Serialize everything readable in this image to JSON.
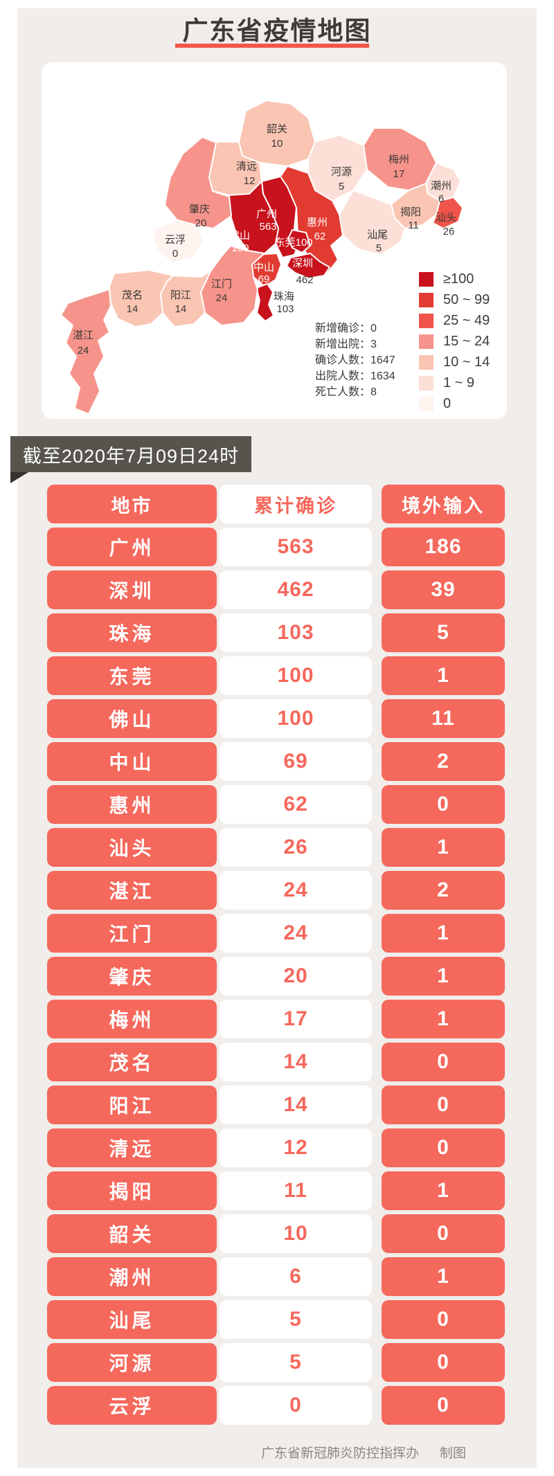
{
  "title": {
    "text": "广东省疫情地图"
  },
  "map_card": {
    "legend": [
      {
        "label": "≥100",
        "color": "#c8121c"
      },
      {
        "label": "50 ~ 99",
        "color": "#e23b31"
      },
      {
        "label": "25 ~ 49",
        "color": "#f0544a"
      },
      {
        "label": "15 ~ 24",
        "color": "#f6948b"
      },
      {
        "label": "10 ~ 14",
        "color": "#fac5b3"
      },
      {
        "label": "1 ~ 9",
        "color": "#fcdfd7"
      },
      {
        "label": "0",
        "color": "#fdf3ef"
      }
    ],
    "stats": [
      {
        "label": "新增确诊：",
        "value": "0"
      },
      {
        "label": "新增出院：",
        "value": "3"
      },
      {
        "label": "确诊人数：",
        "value": "1647"
      },
      {
        "label": "出院人数：",
        "value": "1634"
      },
      {
        "label": "死亡人数：",
        "value": "8"
      }
    ],
    "regions": [
      {
        "id": "shaoguan",
        "name": "韶关",
        "value": "10",
        "tier": 4
      },
      {
        "id": "qingyuan",
        "name": "清远",
        "value": "12",
        "tier": 4
      },
      {
        "id": "heyuan",
        "name": "河源",
        "value": "5",
        "tier": 5
      },
      {
        "id": "meizhou",
        "name": "梅州",
        "value": "17",
        "tier": 3
      },
      {
        "id": "chaozhou",
        "name": "潮州",
        "value": "6",
        "tier": 5
      },
      {
        "id": "jieyang",
        "name": "揭阳",
        "value": "11",
        "tier": 4
      },
      {
        "id": "shantou",
        "name": "汕头",
        "value": "26",
        "tier": 2
      },
      {
        "id": "shanwei",
        "name": "汕尾",
        "value": "5",
        "tier": 5
      },
      {
        "id": "huizhou",
        "name": "惠州",
        "value": "62",
        "tier": 1
      },
      {
        "id": "guangzhou",
        "name": "广州",
        "value": "563",
        "tier": 0
      },
      {
        "id": "foshan",
        "name": "佛山",
        "value": "100",
        "tier": 0
      },
      {
        "id": "dongguan",
        "name": "东莞",
        "value": "100",
        "tier": 0
      },
      {
        "id": "shenzhen",
        "name": "深圳",
        "value": "462",
        "tier": 0
      },
      {
        "id": "zhongshan",
        "name": "中山",
        "value": "69",
        "tier": 1
      },
      {
        "id": "zhuhai",
        "name": "珠海",
        "value": "103",
        "tier": 0
      },
      {
        "id": "jiangmen",
        "name": "江门",
        "value": "24",
        "tier": 3
      },
      {
        "id": "zhaoqing",
        "name": "肇庆",
        "value": "20",
        "tier": 3
      },
      {
        "id": "yunfu",
        "name": "云浮",
        "value": "0",
        "tier": 6
      },
      {
        "id": "maoming",
        "name": "茂名",
        "value": "14",
        "tier": 4
      },
      {
        "id": "yangjiang",
        "name": "阳江",
        "value": "14",
        "tier": 4
      },
      {
        "id": "zhanjiang",
        "name": "湛江",
        "value": "24",
        "tier": 3
      }
    ]
  },
  "date_banner": {
    "text": "截至2020年7月09日24时"
  },
  "table": {
    "headers": [
      "地市",
      "累计确诊",
      "境外输入"
    ],
    "rows": [
      [
        "广州",
        "563",
        "186"
      ],
      [
        "深圳",
        "462",
        "39"
      ],
      [
        "珠海",
        "103",
        "5"
      ],
      [
        "东莞",
        "100",
        "1"
      ],
      [
        "佛山",
        "100",
        "11"
      ],
      [
        "中山",
        "69",
        "2"
      ],
      [
        "惠州",
        "62",
        "0"
      ],
      [
        "汕头",
        "26",
        "1"
      ],
      [
        "湛江",
        "24",
        "2"
      ],
      [
        "江门",
        "24",
        "1"
      ],
      [
        "肇庆",
        "20",
        "1"
      ],
      [
        "梅州",
        "17",
        "1"
      ],
      [
        "茂名",
        "14",
        "0"
      ],
      [
        "阳江",
        "14",
        "0"
      ],
      [
        "清远",
        "12",
        "0"
      ],
      [
        "揭阳",
        "11",
        "1"
      ],
      [
        "韶关",
        "10",
        "0"
      ],
      [
        "潮州",
        "6",
        "1"
      ],
      [
        "汕尾",
        "5",
        "0"
      ],
      [
        "河源",
        "5",
        "0"
      ],
      [
        "云浮",
        "0",
        "0"
      ]
    ]
  },
  "footer": {
    "credit": "广东省新冠肺炎防控指挥办",
    "suffix": "制图"
  },
  "colors": {
    "accent_red": "#f5685c",
    "dark_red": "#c8121c",
    "banner_bg": "#57544e",
    "panel_bg": "#f0edea"
  }
}
